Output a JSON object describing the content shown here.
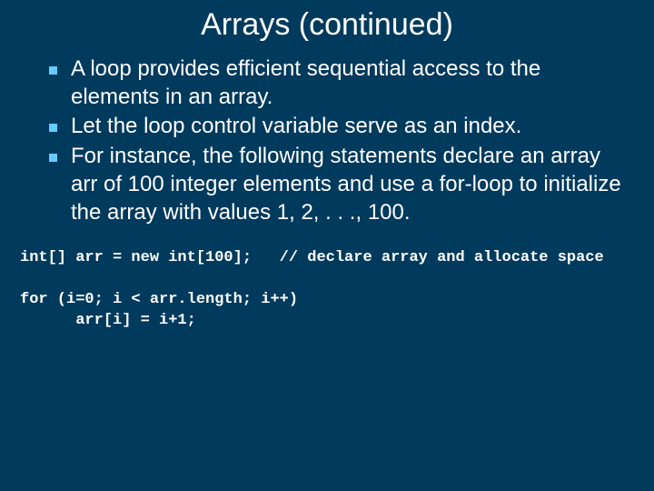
{
  "slide": {
    "background_color": "#003a5d",
    "text_color": "#ffffff",
    "bullet_color": "#66ccff",
    "title": "Arrays (continued)",
    "title_fontsize": 34,
    "body_fontsize": 24,
    "code_fontsize": 17,
    "bullets": [
      "A loop provides efficient sequential access to the elements in an array.",
      "Let the loop control variable serve as an index.",
      "For instance, the following statements declare an array arr of 100 integer elements and use a for-loop to initialize the array with values 1, 2, . . ., 100."
    ],
    "code_lines": [
      "int[] arr = new int[100];   // declare array and allocate space",
      "",
      "for (i=0; i < arr.length; i++)",
      "      arr[i] = i+1;"
    ]
  }
}
